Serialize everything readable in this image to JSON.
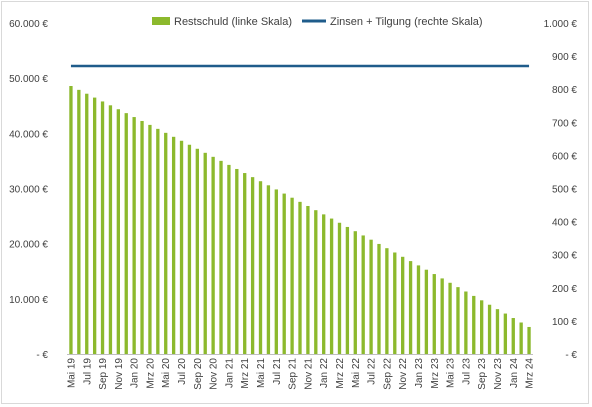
{
  "chart_data": {
    "type": "bar",
    "legend_position": "top",
    "grid": false,
    "colors": {
      "bar": "#8cb92d",
      "line": "#1f5c8b",
      "axis": "#bfbfbf",
      "text": "#404040"
    },
    "series": [
      {
        "name": "Restschuld (linke Skala)",
        "type": "bar",
        "axis": "left",
        "values": [
          48580,
          47880,
          47180,
          46480,
          45780,
          45080,
          44370,
          43660,
          42950,
          42240,
          41530,
          40810,
          40090,
          39370,
          38650,
          37930,
          37200,
          36470,
          35740,
          35010,
          34280,
          33540,
          32800,
          32060,
          31320,
          30580,
          29830,
          29080,
          28330,
          27580,
          26830,
          26070,
          25310,
          24550,
          23790,
          23030,
          22260,
          21490,
          20720,
          19950,
          19180,
          18400,
          17620,
          16840,
          16060,
          15280,
          14490,
          13700,
          12910,
          12120,
          11330,
          10530,
          9730,
          8930,
          8130,
          7330,
          6520,
          5710,
          4900
        ]
      },
      {
        "name": "Zinsen + Tilgung (rechte Skala)",
        "type": "line",
        "axis": "right",
        "values": [
          870,
          870,
          870,
          870,
          870,
          870,
          870,
          870,
          870,
          870,
          870,
          870,
          870,
          870,
          870,
          870,
          870,
          870,
          870,
          870,
          870,
          870,
          870,
          870,
          870,
          870,
          870,
          870,
          870,
          870,
          870,
          870,
          870,
          870,
          870,
          870,
          870,
          870,
          870,
          870,
          870,
          870,
          870,
          870,
          870,
          870,
          870,
          870,
          870,
          870,
          870,
          870,
          870,
          870,
          870,
          870,
          870,
          870,
          870
        ]
      }
    ],
    "x_tick_labels": [
      "Mai 19",
      "Jul 19",
      "Sep 19",
      "Nov 19",
      "Jan 20",
      "Mrz 20",
      "Mai 20",
      "Jul 20",
      "Sep 20",
      "Nov 20",
      "Jan 21",
      "Mrz 21",
      "Mai 21",
      "Jul 21",
      "Sep 21",
      "Nov 21",
      "Jan 22",
      "Mrz 22",
      "Mai 22",
      "Jul 22",
      "Sep 22",
      "Nov 22",
      "Jan 23",
      "Mrz 23",
      "Mai 23",
      "Jul 23",
      "Sep 23",
      "Nov 23",
      "Jan 24",
      "Mrz 24"
    ],
    "left_axis": {
      "ylim": [
        0,
        60000
      ],
      "tick_values": [
        0,
        10000,
        20000,
        30000,
        40000,
        50000,
        60000
      ],
      "tick_labels": [
        "-   €",
        "10.000 €",
        "20.000 €",
        "30.000 €",
        "40.000 €",
        "50.000 €",
        "60.000 €"
      ]
    },
    "right_axis": {
      "ylim": [
        0,
        1000
      ],
      "tick_values": [
        0,
        100,
        200,
        300,
        400,
        500,
        600,
        700,
        800,
        900,
        1000
      ],
      "tick_labels": [
        "-   €",
        "100 €",
        "200 €",
        "300 €",
        "400 €",
        "500 €",
        "600 €",
        "700 €",
        "800 €",
        "900 €",
        "1.000 €"
      ]
    }
  }
}
